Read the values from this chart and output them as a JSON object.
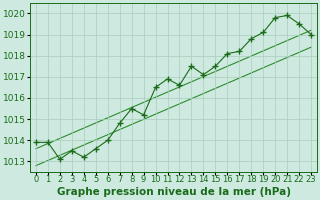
{
  "title": "Graphe pression niveau de la mer (hPa)",
  "x_values": [
    0,
    1,
    2,
    3,
    4,
    5,
    6,
    7,
    8,
    9,
    10,
    11,
    12,
    13,
    14,
    15,
    16,
    17,
    18,
    19,
    20,
    21,
    22,
    23
  ],
  "y_values": [
    1013.9,
    1013.9,
    1013.1,
    1013.5,
    1013.2,
    1013.6,
    1014.0,
    1014.8,
    1015.5,
    1015.2,
    1016.5,
    1016.9,
    1016.6,
    1017.5,
    1017.1,
    1017.5,
    1018.1,
    1018.2,
    1018.8,
    1019.1,
    1019.8,
    1019.9,
    1019.5,
    1019.0
  ],
  "trend1_x": [
    0,
    23
  ],
  "trend1_y": [
    1013.6,
    1019.2
  ],
  "trend2_x": [
    0,
    23
  ],
  "trend2_y": [
    1012.8,
    1018.4
  ],
  "ylim": [
    1012.5,
    1020.5
  ],
  "xlim": [
    -0.5,
    23.5
  ],
  "yticks": [
    1013,
    1014,
    1015,
    1016,
    1017,
    1018,
    1019,
    1020
  ],
  "xtick_labels": [
    "0",
    "1",
    "2",
    "3",
    "4",
    "5",
    "6",
    "7",
    "8",
    "9",
    "10",
    "11",
    "12",
    "13",
    "14",
    "15",
    "16",
    "17",
    "18",
    "19",
    "20",
    "21",
    "22",
    "23"
  ],
  "line_color": "#1a6b1a",
  "marker_color": "#1a6b1a",
  "trend_color": "#2d8b2d",
  "bg_color": "#ceeae0",
  "grid_color": "#a8ccbc",
  "title_color": "#1a6b1a",
  "title_fontsize": 7.5,
  "tick_fontsize": 6.5
}
